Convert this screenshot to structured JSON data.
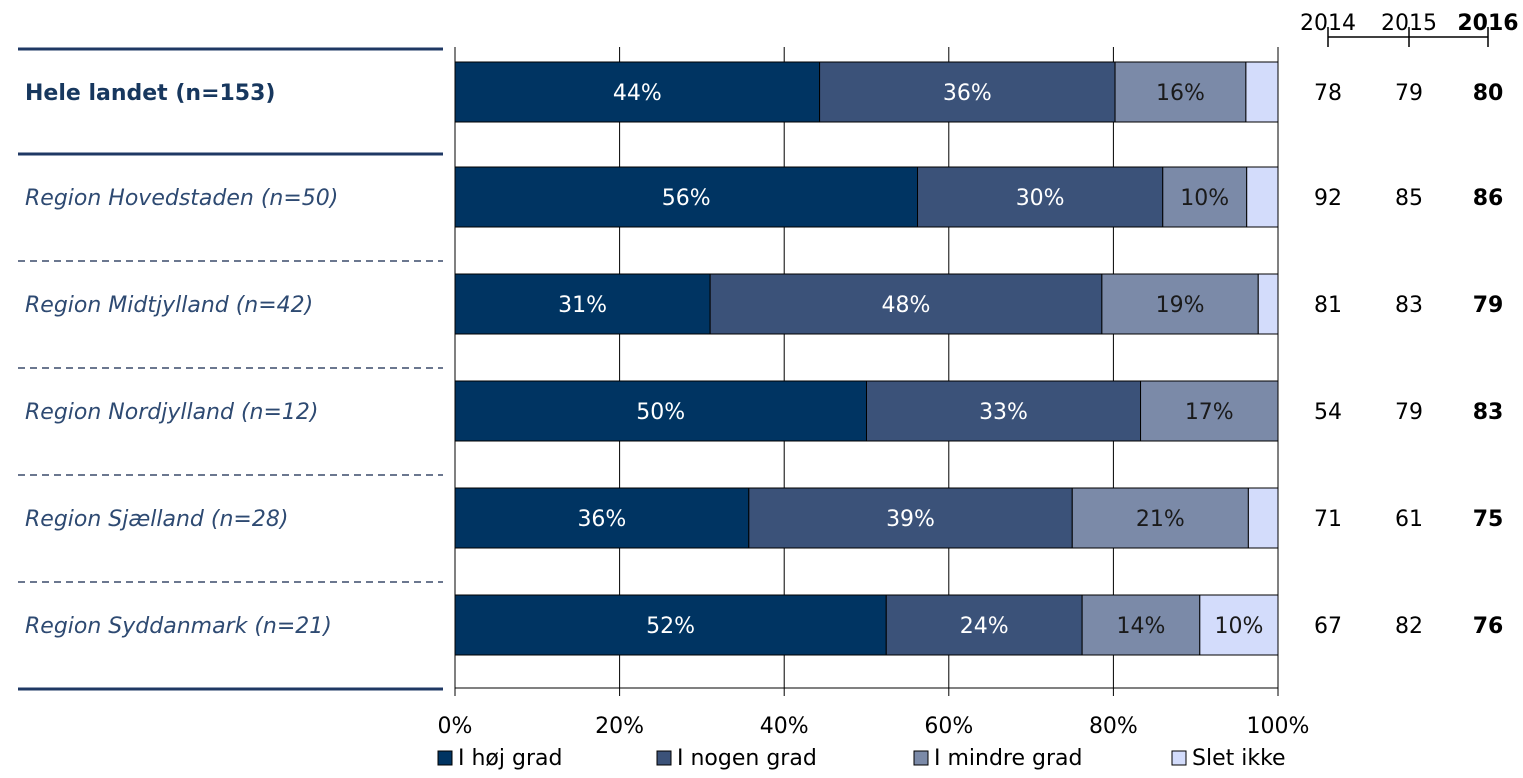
{
  "colors": {
    "series": [
      "#003462",
      "#3b5279",
      "#7b8aa8",
      "#d3dcfb"
    ],
    "text_dark": "#17375e",
    "text_italic": "#2e4a72",
    "bar_label_light": "#ffffff",
    "bar_label_dark": "#1a1a1a",
    "grid": "#000000",
    "separator_solid": "#1f3864",
    "separator_dashed": "#3a4a6a"
  },
  "chart_data": {
    "type": "bar",
    "orientation": "horizontal",
    "stacked": true,
    "categories": [
      "Hele landet (n=153)",
      "Region Hovedstaden (n=50)",
      "Region Midtjylland (n=42)",
      "Region Nordjylland (n=12)",
      "Region Sjælland (n=28)",
      "Region Syddanmark (n=21)"
    ],
    "category_style": [
      "bold",
      "italic",
      "italic",
      "italic",
      "italic",
      "italic"
    ],
    "series": [
      {
        "name": "I høj grad",
        "values": [
          44.3,
          56.2,
          31.0,
          50.0,
          35.7,
          52.4
        ],
        "labels": [
          "44%",
          "56%",
          "31%",
          "50%",
          "36%",
          "52%"
        ]
      },
      {
        "name": "I nogen grad",
        "values": [
          35.9,
          29.8,
          47.6,
          33.3,
          39.3,
          23.8
        ],
        "labels": [
          "36%",
          "30%",
          "48%",
          "33%",
          "39%",
          "24%"
        ]
      },
      {
        "name": "I mindre grad",
        "values": [
          15.9,
          10.2,
          19.0,
          16.7,
          21.4,
          14.3
        ],
        "labels": [
          "16%",
          "10%",
          "19%",
          "17%",
          "21%",
          "14%"
        ]
      },
      {
        "name": "Slet ikke",
        "values": [
          3.9,
          3.8,
          2.4,
          0.0,
          3.6,
          9.5
        ],
        "labels": [
          "",
          "",
          "",
          "",
          "",
          "10%"
        ]
      }
    ],
    "x_ticks": [
      "0%",
      "20%",
      "40%",
      "60%",
      "80%",
      "100%"
    ],
    "xlim": [
      0,
      100
    ],
    "grid": true,
    "legend_position": "bottom",
    "year_table": {
      "years": [
        "2014",
        "2015",
        "2016"
      ],
      "highlight_year": "2016",
      "rows": [
        [
          "78",
          "79",
          "80"
        ],
        [
          "92",
          "85",
          "86"
        ],
        [
          "81",
          "83",
          "79"
        ],
        [
          "54",
          "79",
          "83"
        ],
        [
          "71",
          "61",
          "75"
        ],
        [
          "67",
          "82",
          "76"
        ]
      ]
    }
  }
}
